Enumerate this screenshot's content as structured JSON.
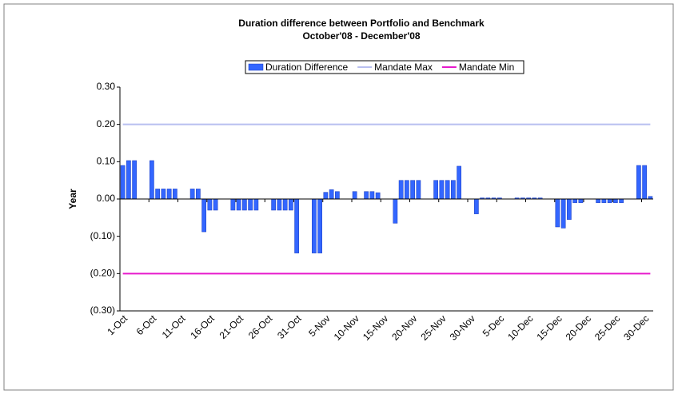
{
  "chart_data": {
    "type": "bar",
    "title": "Duration difference between Portfolio and Benchmark",
    "subtitle": "October'08 - December'08",
    "y_label": "Year",
    "categories": [
      "1-Oct",
      null,
      null,
      null,
      null,
      "6-Oct",
      null,
      null,
      null,
      null,
      "11-Oct",
      null,
      null,
      null,
      null,
      "16-Oct",
      null,
      null,
      null,
      null,
      "21-Oct",
      null,
      null,
      null,
      null,
      "26-Oct",
      null,
      null,
      null,
      null,
      "31-Oct",
      null,
      null,
      null,
      null,
      "5-Nov",
      null,
      null,
      null,
      null,
      "10-Nov",
      null,
      null,
      null,
      null,
      "15-Nov",
      null,
      null,
      null,
      null,
      "20-Nov",
      null,
      null,
      null,
      null,
      "25-Nov",
      null,
      null,
      null,
      null,
      "30-Nov",
      null,
      null,
      null,
      null,
      "5-Dec",
      null,
      null,
      null,
      null,
      "10-Dec",
      null,
      null,
      null,
      null,
      "15-Dec",
      null,
      null,
      null,
      null,
      "20-Dec",
      null,
      null,
      null,
      null,
      "25-Dec",
      null,
      null,
      null,
      null,
      "30-Dec",
      null
    ],
    "series": [
      {
        "name": "Duration Difference",
        "type": "bar",
        "color": "#3366ff",
        "values": [
          0.09,
          0.103,
          0.103,
          null,
          null,
          0.103,
          0.027,
          0.027,
          0.027,
          0.027,
          null,
          null,
          0.027,
          0.027,
          -0.088,
          -0.03,
          -0.03,
          null,
          null,
          -0.03,
          -0.03,
          -0.03,
          -0.03,
          -0.03,
          null,
          null,
          -0.03,
          -0.03,
          -0.03,
          -0.03,
          -0.145,
          null,
          null,
          -0.145,
          -0.145,
          0.018,
          0.025,
          0.02,
          null,
          null,
          0.02,
          null,
          0.02,
          0.02,
          0.017,
          null,
          null,
          -0.065,
          0.05,
          0.05,
          0.05,
          0.05,
          null,
          null,
          0.05,
          0.05,
          0.05,
          0.05,
          0.088,
          null,
          null,
          -0.04,
          0.003,
          0.003,
          0.003,
          0.003,
          null,
          null,
          0.003,
          0.003,
          0.003,
          0.003,
          0.003,
          null,
          null,
          -0.075,
          -0.078,
          -0.055,
          -0.01,
          -0.01,
          null,
          null,
          -0.01,
          -0.01,
          -0.01,
          -0.01,
          -0.01,
          null,
          null,
          0.09,
          0.09,
          0.007
        ]
      },
      {
        "name": "Mandate Max",
        "type": "line",
        "color": "#b8bff0",
        "values": [
          0.2,
          0.2,
          0.2,
          0.2,
          0.2,
          0.2,
          0.2,
          0.2,
          0.2,
          0.2,
          0.2,
          0.2,
          0.2,
          0.2,
          0.2,
          0.2,
          0.2,
          0.2,
          0.2,
          0.2,
          0.2,
          0.2,
          0.2,
          0.2,
          0.2,
          0.2,
          0.2,
          0.2,
          0.2,
          0.2,
          0.2,
          0.2,
          0.2,
          0.2,
          0.2,
          0.2,
          0.2,
          0.2,
          0.2,
          0.2,
          0.2,
          0.2,
          0.2,
          0.2,
          0.2,
          0.2,
          0.2,
          0.2,
          0.2,
          0.2,
          0.2,
          0.2,
          0.2,
          0.2,
          0.2,
          0.2,
          0.2,
          0.2,
          0.2,
          0.2,
          0.2,
          0.2,
          0.2,
          0.2,
          0.2,
          0.2,
          0.2,
          0.2,
          0.2,
          0.2,
          0.2,
          0.2,
          0.2,
          0.2,
          0.2,
          0.2,
          0.2,
          0.2,
          0.2,
          0.2,
          0.2,
          0.2,
          0.2,
          0.2,
          0.2,
          0.2,
          0.2,
          0.2,
          0.2,
          0.2,
          0.2,
          0.2
        ]
      },
      {
        "name": "Mandate Min",
        "type": "line",
        "color": "#e619cc",
        "values": [
          -0.2,
          -0.2,
          -0.2,
          -0.2,
          -0.2,
          -0.2,
          -0.2,
          -0.2,
          -0.2,
          -0.2,
          -0.2,
          -0.2,
          -0.2,
          -0.2,
          -0.2,
          -0.2,
          -0.2,
          -0.2,
          -0.2,
          -0.2,
          -0.2,
          -0.2,
          -0.2,
          -0.2,
          -0.2,
          -0.2,
          -0.2,
          -0.2,
          -0.2,
          -0.2,
          -0.2,
          -0.2,
          -0.2,
          -0.2,
          -0.2,
          -0.2,
          -0.2,
          -0.2,
          -0.2,
          -0.2,
          -0.2,
          -0.2,
          -0.2,
          -0.2,
          -0.2,
          -0.2,
          -0.2,
          -0.2,
          -0.2,
          -0.2,
          -0.2,
          -0.2,
          -0.2,
          -0.2,
          -0.2,
          -0.2,
          -0.2,
          -0.2,
          -0.2,
          -0.2,
          -0.2,
          -0.2,
          -0.2,
          -0.2,
          -0.2,
          -0.2,
          -0.2,
          -0.2,
          -0.2,
          -0.2,
          -0.2,
          -0.2,
          -0.2,
          -0.2,
          -0.2,
          -0.2,
          -0.2,
          -0.2,
          -0.2,
          -0.2,
          -0.2,
          -0.2,
          -0.2,
          -0.2,
          -0.2,
          -0.2,
          -0.2,
          -0.2,
          -0.2,
          -0.2,
          -0.2,
          -0.2
        ]
      }
    ],
    "ylim": [
      -0.3,
      0.3
    ],
    "yticks": [
      {
        "value": -0.3,
        "label": "(0.30)"
      },
      {
        "value": -0.2,
        "label": "(0.20)"
      },
      {
        "value": -0.1,
        "label": "(0.10)"
      },
      {
        "value": 0,
        "label": "0.00"
      },
      {
        "value": 0.1,
        "label": "0.10"
      },
      {
        "value": 0.2,
        "label": "0.20"
      },
      {
        "value": 0.3,
        "label": "0.30"
      }
    ],
    "legend": "top"
  }
}
